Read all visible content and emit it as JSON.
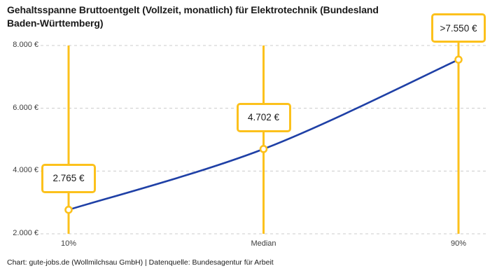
{
  "title": "Gehaltsspanne Bruttoentgelt (Vollzeit, monatlich) für Elektrotechnik (Bundesland\nBaden-Württemberg)",
  "footer": "Chart: gute-jobs.de (Wollmilchsau GmbH) | Datenquelle: Bundesagentur für Arbeit",
  "colors": {
    "accent": "#fcc11c",
    "line": "#1f40a6",
    "grid": "#cccccc",
    "title_text": "#1a1a1a",
    "axis_text": "#3c3c3c",
    "background": "#ffffff"
  },
  "chart_data": {
    "type": "line",
    "categories": [
      "10%",
      "Median",
      "90%"
    ],
    "values": [
      2765,
      4702,
      7550
    ],
    "point_labels": [
      "2.765 €",
      "4.702 €",
      ">7.550 €"
    ],
    "y_ticks": [
      {
        "value": 2000,
        "label": "2.000 €"
      },
      {
        "value": 4000,
        "label": "4.000 €"
      },
      {
        "value": 6000,
        "label": "6.000 €"
      },
      {
        "value": 8000,
        "label": "8.000 €"
      }
    ],
    "ylim": [
      2000,
      8000
    ],
    "xlabel": "",
    "ylabel": "",
    "grid": "horizontal-dashed",
    "legend": "none",
    "marker_style": "open-circle",
    "annotation_style": "yellow-callout-boxes-with-vertical-percentile-lines"
  }
}
